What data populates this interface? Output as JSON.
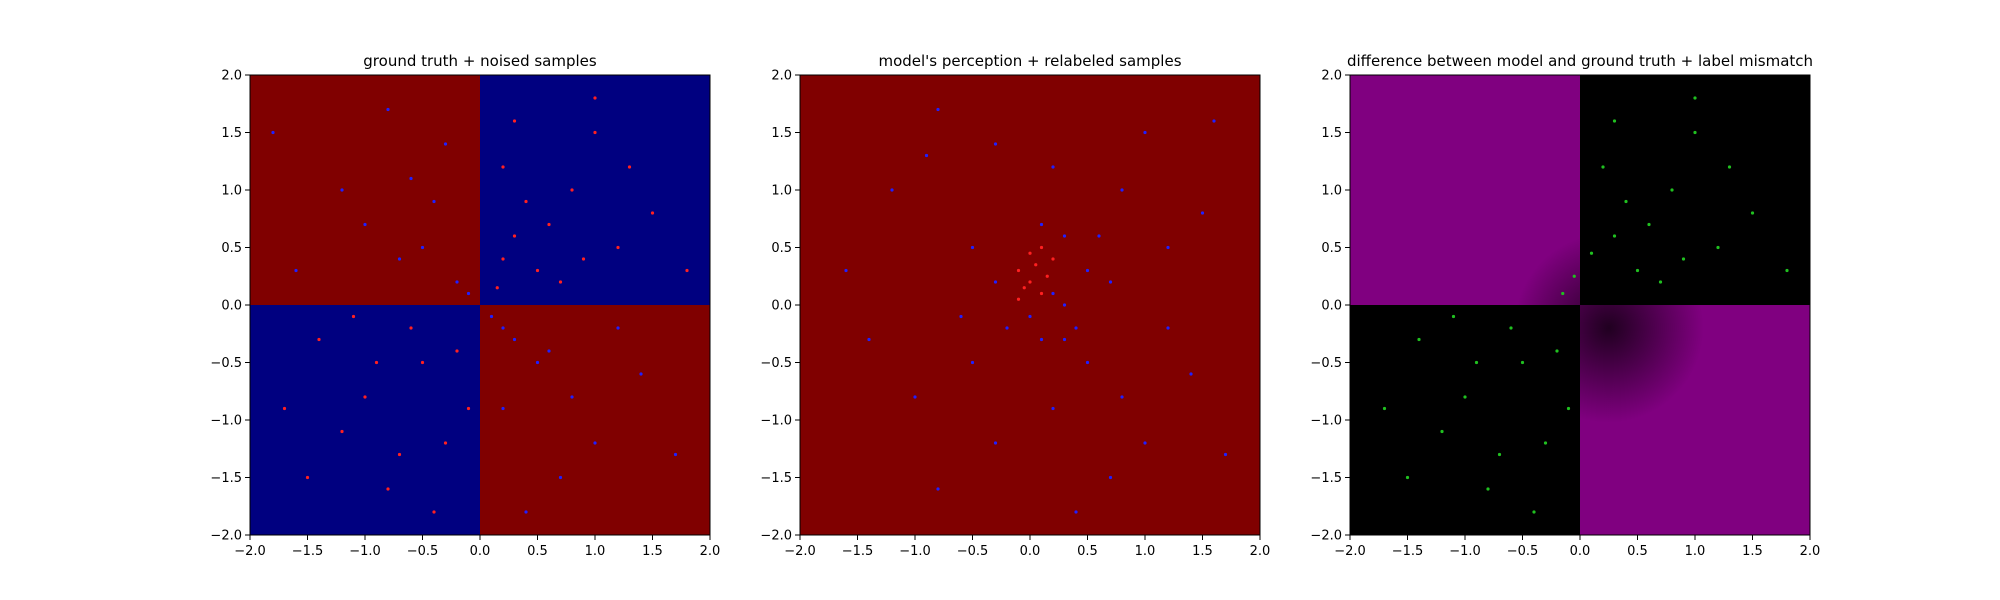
{
  "figure": {
    "background": "#ffffff"
  },
  "chart_data": [
    {
      "type": "scatter",
      "title": "ground truth + noised samples",
      "xlim": [
        -2.0,
        2.0
      ],
      "ylim": [
        -2.0,
        2.0
      ],
      "xticks": [
        "−2.0",
        "−1.5",
        "−1.0",
        "−0.5",
        "0.0",
        "0.5",
        "1.0",
        "1.5",
        "2.0"
      ],
      "yticks": [
        "−2.0",
        "−1.5",
        "−1.0",
        "−0.5",
        "0.0",
        "0.5",
        "1.0",
        "1.5",
        "2.0"
      ],
      "grid": false,
      "background_regions": [
        {
          "x": [
            -2,
            0
          ],
          "y": [
            0,
            2
          ],
          "color": "#800000"
        },
        {
          "x": [
            0,
            2
          ],
          "y": [
            0,
            2
          ],
          "color": "#000080"
        },
        {
          "x": [
            -2,
            0
          ],
          "y": [
            -2,
            0
          ],
          "color": "#000080"
        },
        {
          "x": [
            0,
            2
          ],
          "y": [
            -2,
            0
          ],
          "color": "#800000"
        }
      ],
      "series": [
        {
          "color": "#ff2020",
          "points": [
            [
              -0.5,
              -0.5
            ],
            [
              -1.0,
              -0.8
            ],
            [
              -0.3,
              -1.2
            ],
            [
              -1.4,
              -0.3
            ],
            [
              -0.8,
              -1.6
            ],
            [
              -0.2,
              -0.4
            ],
            [
              -1.2,
              -1.1
            ],
            [
              -0.6,
              -0.2
            ],
            [
              -1.7,
              -0.9
            ],
            [
              -0.4,
              -1.8
            ],
            [
              -0.9,
              -0.5
            ],
            [
              -0.1,
              -0.9
            ],
            [
              -1.5,
              -1.5
            ],
            [
              -0.7,
              -1.3
            ],
            [
              -1.1,
              -0.1
            ],
            [
              0.3,
              0.6
            ],
            [
              0.8,
              1.0
            ],
            [
              0.5,
              0.3
            ],
            [
              1.2,
              0.5
            ],
            [
              0.2,
              1.2
            ],
            [
              0.7,
              0.2
            ],
            [
              1.0,
              1.5
            ],
            [
              0.4,
              0.9
            ],
            [
              1.5,
              0.8
            ],
            [
              0.9,
              0.4
            ],
            [
              0.3,
              1.6
            ],
            [
              1.3,
              1.2
            ],
            [
              0.6,
              0.7
            ],
            [
              1.8,
              0.3
            ],
            [
              0.15,
              0.15
            ],
            [
              1.0,
              1.8
            ],
            [
              0.2,
              0.4
            ]
          ]
        },
        {
          "color": "#2020ff",
          "points": [
            [
              -0.5,
              0.5
            ],
            [
              -1.2,
              1.0
            ],
            [
              -0.3,
              1.4
            ],
            [
              -1.6,
              0.3
            ],
            [
              -0.8,
              1.7
            ],
            [
              -0.2,
              0.2
            ],
            [
              -1.0,
              0.7
            ],
            [
              -0.6,
              1.1
            ],
            [
              -1.8,
              1.5
            ],
            [
              -0.4,
              0.9
            ],
            [
              0.5,
              -0.5
            ],
            [
              1.0,
              -1.2
            ],
            [
              0.3,
              -0.3
            ],
            [
              1.4,
              -0.6
            ],
            [
              0.7,
              -1.5
            ],
            [
              0.2,
              -0.9
            ],
            [
              1.2,
              -0.2
            ],
            [
              0.8,
              -0.8
            ],
            [
              1.7,
              -1.3
            ],
            [
              0.4,
              -1.8
            ],
            [
              0.1,
              -0.1
            ],
            [
              -0.1,
              0.1
            ],
            [
              0.6,
              -0.4
            ],
            [
              0.2,
              -0.2
            ],
            [
              -0.7,
              0.4
            ]
          ]
        }
      ]
    },
    {
      "type": "scatter",
      "title": "model's perception + relabeled samples",
      "xlim": [
        -2.0,
        2.0
      ],
      "ylim": [
        -2.0,
        2.0
      ],
      "xticks": [
        "−2.0",
        "−1.5",
        "−1.0",
        "−0.5",
        "0.0",
        "0.5",
        "1.0",
        "1.5",
        "2.0"
      ],
      "yticks": [
        "−2.0",
        "−1.5",
        "−1.0",
        "−0.5",
        "0.0",
        "0.5",
        "1.0",
        "1.5",
        "2.0"
      ],
      "grid": false,
      "background_regions": [
        {
          "x": [
            -2,
            2
          ],
          "y": [
            -2,
            2
          ],
          "color": "#800000"
        }
      ],
      "series": [
        {
          "color": "#ff2020",
          "points": [
            [
              0.0,
              0.2
            ],
            [
              -0.1,
              0.3
            ],
            [
              0.1,
              0.1
            ],
            [
              0.05,
              0.35
            ],
            [
              -0.05,
              0.15
            ],
            [
              0.15,
              0.25
            ],
            [
              0.0,
              0.45
            ],
            [
              0.1,
              0.5
            ],
            [
              -0.1,
              0.05
            ],
            [
              0.2,
              0.4
            ]
          ]
        },
        {
          "color": "#2020ff",
          "points": [
            [
              -0.5,
              0.5
            ],
            [
              -1.2,
              1.0
            ],
            [
              -0.3,
              1.4
            ],
            [
              -1.6,
              0.3
            ],
            [
              -0.8,
              1.7
            ],
            [
              0.5,
              -0.5
            ],
            [
              1.0,
              -1.2
            ],
            [
              0.3,
              -0.3
            ],
            [
              1.4,
              -0.6
            ],
            [
              0.7,
              -1.5
            ],
            [
              0.2,
              -0.9
            ],
            [
              1.2,
              -0.2
            ],
            [
              0.8,
              -0.8
            ],
            [
              1.7,
              -1.3
            ],
            [
              0.4,
              -1.8
            ],
            [
              -0.5,
              -0.5
            ],
            [
              -1.0,
              -0.8
            ],
            [
              -0.3,
              -1.2
            ],
            [
              -1.4,
              -0.3
            ],
            [
              -0.8,
              -1.6
            ],
            [
              0.3,
              0.6
            ],
            [
              0.8,
              1.0
            ],
            [
              0.5,
              0.3
            ],
            [
              1.2,
              0.5
            ],
            [
              0.2,
              1.2
            ],
            [
              0.7,
              0.2
            ],
            [
              1.0,
              1.5
            ],
            [
              1.5,
              0.8
            ],
            [
              0.0,
              -0.1
            ],
            [
              0.1,
              -0.3
            ],
            [
              -0.2,
              -0.2
            ],
            [
              0.3,
              0.0
            ],
            [
              0.2,
              0.1
            ],
            [
              -0.3,
              0.2
            ],
            [
              0.4,
              -0.2
            ],
            [
              0.1,
              0.7
            ],
            [
              -0.6,
              -0.1
            ],
            [
              0.6,
              0.6
            ],
            [
              -0.9,
              1.3
            ],
            [
              1.6,
              1.6
            ]
          ]
        }
      ]
    },
    {
      "type": "scatter",
      "title": "difference between model and ground truth + label mismatch",
      "xlim": [
        -2.0,
        2.0
      ],
      "ylim": [
        -2.0,
        2.0
      ],
      "xticks": [
        "−2.0",
        "−1.5",
        "−1.0",
        "−0.5",
        "0.0",
        "0.5",
        "1.0",
        "1.5",
        "2.0"
      ],
      "yticks": [
        "−2.0",
        "−1.5",
        "−1.0",
        "−0.5",
        "0.0",
        "0.5",
        "1.0",
        "1.5",
        "2.0"
      ],
      "grid": false,
      "background_regions": [
        {
          "x": [
            -2,
            0
          ],
          "y": [
            0,
            2
          ],
          "color": "#800080"
        },
        {
          "x": [
            0,
            2
          ],
          "y": [
            0,
            2
          ],
          "color": "#000000"
        },
        {
          "x": [
            -2,
            0
          ],
          "y": [
            -2,
            0
          ],
          "color": "#000000"
        },
        {
          "x": [
            0,
            2
          ],
          "y": [
            -2,
            0
          ],
          "color": "#800080"
        }
      ],
      "dark_blob_center": [
        0.25,
        -0.2
      ],
      "series": [
        {
          "color": "#20c020",
          "points": [
            [
              0.3,
              0.6
            ],
            [
              0.8,
              1.0
            ],
            [
              0.5,
              0.3
            ],
            [
              1.2,
              0.5
            ],
            [
              0.2,
              1.2
            ],
            [
              0.7,
              0.2
            ],
            [
              1.0,
              1.5
            ],
            [
              0.4,
              0.9
            ],
            [
              1.5,
              0.8
            ],
            [
              0.9,
              0.4
            ],
            [
              0.3,
              1.6
            ],
            [
              1.3,
              1.2
            ],
            [
              0.6,
              0.7
            ],
            [
              1.8,
              0.3
            ],
            [
              1.0,
              1.8
            ],
            [
              -0.5,
              -0.5
            ],
            [
              -1.0,
              -0.8
            ],
            [
              -0.3,
              -1.2
            ],
            [
              -1.4,
              -0.3
            ],
            [
              -0.8,
              -1.6
            ],
            [
              -0.2,
              -0.4
            ],
            [
              -1.2,
              -1.1
            ],
            [
              -0.6,
              -0.2
            ],
            [
              -1.7,
              -0.9
            ],
            [
              -0.4,
              -1.8
            ],
            [
              -0.9,
              -0.5
            ],
            [
              -0.1,
              -0.9
            ],
            [
              -1.5,
              -1.5
            ],
            [
              -0.7,
              -1.3
            ],
            [
              -1.1,
              -0.1
            ],
            [
              -0.15,
              0.1
            ],
            [
              -0.05,
              0.25
            ],
            [
              0.1,
              0.45
            ]
          ]
        }
      ]
    }
  ]
}
